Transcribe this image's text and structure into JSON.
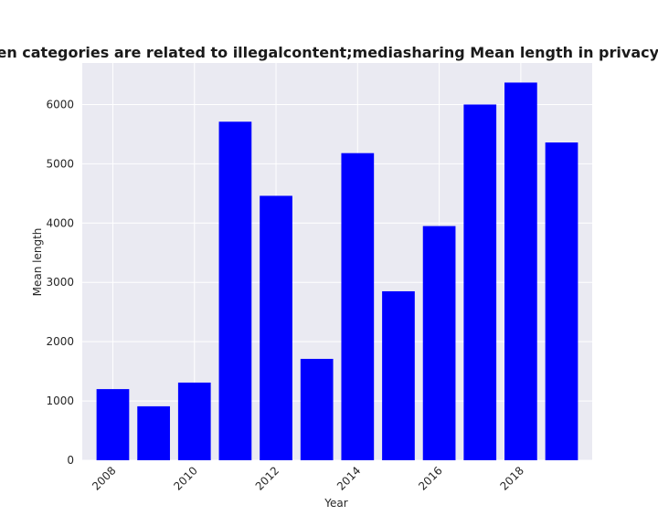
{
  "chart_data": {
    "type": "bar",
    "title": "Mean length when categories are related to illegalcontent;mediasharing Mean length in privacy policies by Year",
    "xlabel": "Year",
    "ylabel": "Mean length",
    "x": [
      2008,
      2009,
      2010,
      2011,
      2012,
      2013,
      2014,
      2015,
      2016,
      2017,
      2018,
      2019
    ],
    "values": [
      1200,
      910,
      1310,
      5710,
      4460,
      1710,
      5180,
      2850,
      3950,
      6000,
      6370,
      5360
    ],
    "xticks": [
      "2008",
      "2010",
      "2012",
      "2014",
      "2016",
      "2018"
    ],
    "yticks": [
      "0",
      "1000",
      "2000",
      "3000",
      "4000",
      "5000",
      "6000"
    ],
    "ylim": [
      0,
      6700
    ],
    "grid": true,
    "bar_color": "#0000ff",
    "plot_background": "#eaeaf2",
    "grid_color": "#ffffff"
  }
}
